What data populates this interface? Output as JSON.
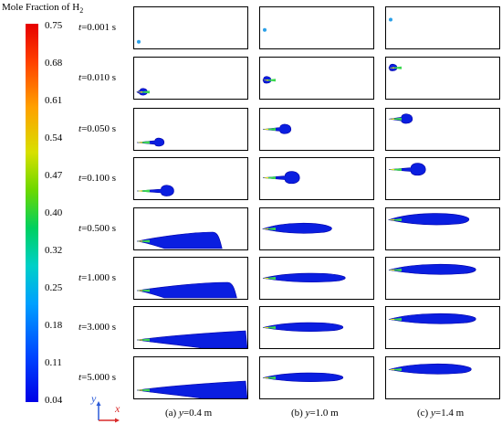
{
  "legend": {
    "title": "Mole Fraction of H",
    "title_sub": "2",
    "ticks": [
      "0.75",
      "0.68",
      "0.61",
      "0.54",
      "0.47",
      "0.40",
      "0.32",
      "0.25",
      "0.18",
      "0.11",
      "0.04"
    ]
  },
  "times": [
    {
      "t_label": "t",
      "value": "=0.001 s"
    },
    {
      "t_label": "t",
      "value": "=0.010 s"
    },
    {
      "t_label": "t",
      "value": "=0.050 s"
    },
    {
      "t_label": "t",
      "value": "=0.100 s"
    },
    {
      "t_label": "t",
      "value": "=0.500 s"
    },
    {
      "t_label": "t",
      "value": "=1.000 s"
    },
    {
      "t_label": "t",
      "value": "=3.000 s"
    },
    {
      "t_label": "t",
      "value": "=5.000 s"
    }
  ],
  "columns": [
    {
      "prefix": "(a) ",
      "var": "y",
      "value": "=0.4 m"
    },
    {
      "prefix": "(b) ",
      "var": "y",
      "value": "=1.0 m"
    },
    {
      "prefix": "(c) ",
      "var": "y",
      "value": "=1.4 m"
    }
  ],
  "axes": {
    "y": "y",
    "x": "x"
  },
  "colors": {
    "plume": "#0a1ee0",
    "plume_edge": "#0000a8",
    "jet_core_green": "#3cd850",
    "jet_core_yellow": "#e8e020",
    "axis_y": "#2a5ad8",
    "axis_x": "#d82a2a"
  }
}
